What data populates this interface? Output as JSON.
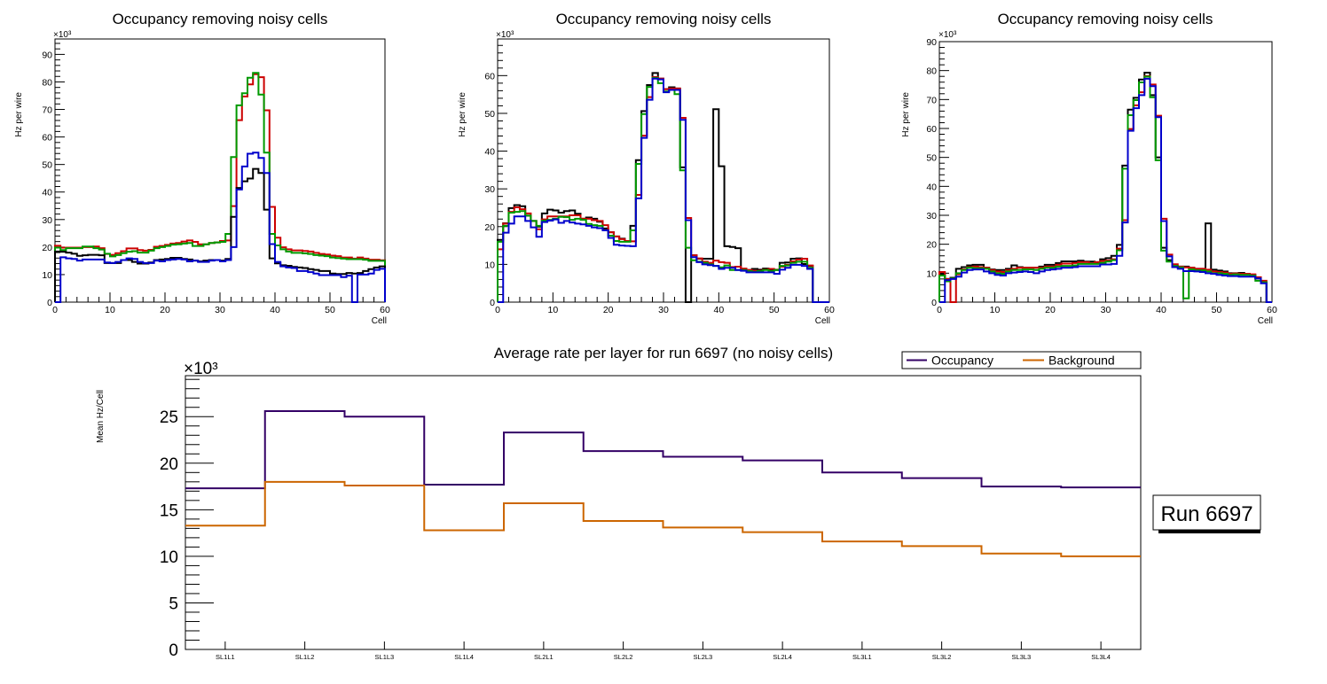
{
  "colors": {
    "black": "#000000",
    "red": "#cc0000",
    "green": "#009900",
    "blue": "#0000cc",
    "occupancy": "#330066",
    "background": "#cc6600"
  },
  "chart_data": [
    {
      "type": "step-histogram",
      "title": "Occupancy removing noisy cells",
      "xlabel": "Cell",
      "ylabel": "Hz per wire",
      "y_multiplier": "×10³",
      "xlim": [
        0,
        60
      ],
      "ylim": [
        0,
        95.6
      ],
      "xticks": [
        0,
        10,
        20,
        30,
        40,
        50,
        60
      ],
      "yticks": [
        0,
        10,
        20,
        30,
        40,
        50,
        60,
        70,
        80,
        90
      ],
      "series": [
        {
          "name": "red",
          "color": "#cc0000",
          "values": [
            20.5,
            19.8,
            19.8,
            19.8,
            19.8,
            20,
            20,
            20.2,
            19.6,
            17.5,
            17.2,
            17.8,
            18.5,
            19.5,
            19.5,
            18.9,
            18.7,
            19,
            20.1,
            20.4,
            20.8,
            21.3,
            21.5,
            22,
            22.4,
            21.9,
            21,
            21,
            21.5,
            21.7,
            22.2,
            22.4,
            34.9,
            66.1,
            74.7,
            79.1,
            82.8,
            81.7,
            69.7,
            34.6,
            23.4,
            19.9,
            19.2,
            18.8,
            18.8,
            18.6,
            18.4,
            17.9,
            17.5,
            17.3,
            16.9,
            16.7,
            16.2,
            16.2,
            15.8,
            16.2,
            15.8,
            15.4,
            15.4,
            15.2
          ]
        },
        {
          "name": "green",
          "color": "#009900",
          "values": [
            19.8,
            18.9,
            19.6,
            19.6,
            19.6,
            20.2,
            20.2,
            19.6,
            19.1,
            17.6,
            16.6,
            17.1,
            17.8,
            18.3,
            18.5,
            18,
            18,
            18.7,
            19.6,
            20,
            20.4,
            20.9,
            21,
            21.3,
            21.5,
            20.4,
            20.4,
            21,
            21.5,
            21.7,
            21.9,
            24.8,
            52.7,
            71.5,
            75.9,
            81.5,
            83.3,
            75.4,
            54.3,
            24.8,
            20.6,
            19.2,
            18.4,
            17.9,
            17.9,
            17.7,
            17.5,
            17.1,
            16.9,
            16.7,
            16.2,
            16,
            15.8,
            15.6,
            15.6,
            15.6,
            15.4,
            15,
            15,
            15
          ]
        },
        {
          "name": "black",
          "color": "#000000",
          "values": [
            18.4,
            18.3,
            18,
            17.6,
            16.8,
            17,
            17.2,
            17.2,
            17,
            14.2,
            14.2,
            14.2,
            15.3,
            15.3,
            14.6,
            14,
            14,
            14.4,
            15.3,
            15.5,
            15.7,
            16.1,
            16.1,
            15.7,
            15.5,
            15.1,
            14.8,
            15.1,
            15.3,
            15.3,
            15.1,
            15.7,
            31,
            41.5,
            43.9,
            44.9,
            48.4,
            46.9,
            33.6,
            15.9,
            14.1,
            13.4,
            13.2,
            12.8,
            12.6,
            12.4,
            12,
            11.7,
            11.3,
            11.3,
            10.4,
            10.2,
            10.2,
            10.6,
            10.4,
            10.6,
            11.3,
            12,
            12.6,
            13
          ]
        },
        {
          "name": "blue",
          "color": "#0000cc",
          "values": [
            0,
            16.3,
            15.9,
            15.7,
            15.1,
            15.5,
            15.5,
            15.5,
            15.5,
            14.4,
            14.2,
            14.6,
            15.3,
            15.9,
            15.7,
            14.6,
            14.2,
            14.2,
            15.1,
            14.8,
            15.3,
            15.5,
            15.7,
            15.5,
            14.8,
            15.1,
            14.6,
            14.6,
            15.1,
            15.3,
            14.8,
            15.3,
            20,
            40.9,
            49.3,
            53.9,
            54.3,
            52.4,
            46.9,
            21.1,
            14.6,
            13,
            12.6,
            12.4,
            11.3,
            11.3,
            10.9,
            10.4,
            9.8,
            9.8,
            9.8,
            9.8,
            9.1,
            9.6,
            0,
            10,
            10,
            10.4,
            11.7,
            12.1
          ]
        }
      ]
    },
    {
      "type": "step-histogram",
      "title": "Occupancy removing noisy cells",
      "xlabel": "Cell",
      "ylabel": "Hz per wire",
      "y_multiplier": "×10³",
      "xlim": [
        0,
        60
      ],
      "ylim": [
        0,
        69.7
      ],
      "xticks": [
        0,
        10,
        20,
        30,
        40,
        50,
        60
      ],
      "yticks": [
        0,
        10,
        20,
        30,
        40,
        50,
        60
      ],
      "series": [
        {
          "name": "black",
          "color": "#000000",
          "values": [
            16.5,
            20.9,
            24.9,
            25.7,
            25.4,
            22.9,
            21.5,
            20,
            23.5,
            24.5,
            24.3,
            23.7,
            24.1,
            24.3,
            23.4,
            22.1,
            22.4,
            22.1,
            21.3,
            19.5,
            18.5,
            17.4,
            16.8,
            16.2,
            20.2,
            37.6,
            50.6,
            57.5,
            60.7,
            59.2,
            56.4,
            56.9,
            56.6,
            35.7,
            0,
            12.4,
            11.5,
            11.5,
            11.5,
            51.1,
            36,
            14.8,
            14.6,
            14.3,
            8.8,
            8.5,
            8.8,
            8.6,
            8.9,
            8.6,
            8.5,
            10.4,
            10.5,
            11.5,
            11.6,
            10.1,
            9.6,
            0,
            0,
            0
          ]
        },
        {
          "name": "red",
          "color": "#cc0000",
          "values": [
            14,
            20.8,
            23.9,
            25.1,
            24.6,
            23.5,
            21.5,
            19.3,
            21.9,
            22.7,
            22.7,
            22.7,
            22.7,
            23,
            23,
            22.1,
            22.1,
            21.7,
            21.5,
            20.4,
            18.5,
            17.4,
            16.7,
            16.2,
            16.1,
            28.4,
            44.1,
            54.3,
            59.6,
            59.2,
            56.4,
            56.6,
            56.6,
            48.8,
            22.3,
            12.4,
            11.6,
            10.7,
            10.4,
            11,
            10.6,
            10.4,
            9.3,
            9.4,
            8.9,
            8.5,
            8.3,
            8.3,
            8.6,
            8.8,
            8.6,
            9.4,
            9.9,
            10.8,
            11.3,
            11.5,
            9.7,
            0,
            0,
            0
          ]
        },
        {
          "name": "green",
          "color": "#009900",
          "values": [
            16,
            20.2,
            23.7,
            23.9,
            24.1,
            22.9,
            21.5,
            20.2,
            21.6,
            21.8,
            22.1,
            22.6,
            22.5,
            21.8,
            22.1,
            21.8,
            20.7,
            20.4,
            20.2,
            19,
            17.6,
            16.2,
            16,
            16,
            19,
            36.6,
            49.8,
            57,
            59.4,
            58,
            55.8,
            56.2,
            55.1,
            34.9,
            14.4,
            11.1,
            10.7,
            10.4,
            10,
            9.6,
            9.2,
            9.7,
            8.5,
            8.5,
            8.5,
            8.2,
            8,
            8.2,
            8.5,
            8.2,
            8.5,
            9.6,
            9.7,
            10.4,
            10.7,
            10.7,
            9.1,
            0,
            0,
            0
          ]
        },
        {
          "name": "blue",
          "color": "#0000cc",
          "values": [
            0,
            18.4,
            20.8,
            22.7,
            22.7,
            21.5,
            19.8,
            17.3,
            21.2,
            21.6,
            21.9,
            21,
            21.5,
            21.1,
            20.8,
            20.6,
            20.2,
            19.8,
            19.6,
            19,
            17,
            15.2,
            15,
            14.9,
            14.8,
            27.5,
            43.5,
            53.6,
            59.2,
            59,
            55.6,
            56.2,
            56.2,
            48.3,
            21.7,
            11.9,
            10.6,
            10,
            9.8,
            9.6,
            8.8,
            9.1,
            9.1,
            8.5,
            8.3,
            7.9,
            7.9,
            7.9,
            7.9,
            7.9,
            7.5,
            8.6,
            9.1,
            9.9,
            9.9,
            9.6,
            8.8,
            0,
            0,
            0
          ]
        }
      ]
    },
    {
      "type": "step-histogram",
      "title": "Occupancy removing noisy cells",
      "xlabel": "Cell",
      "ylabel": "Hz per wire",
      "y_multiplier": "×10³",
      "xlim": [
        0,
        60
      ],
      "ylim": [
        0,
        90
      ],
      "xticks": [
        0,
        10,
        20,
        30,
        40,
        50,
        60
      ],
      "yticks": [
        0,
        10,
        20,
        30,
        40,
        50,
        60,
        70,
        80,
        90
      ],
      "series": [
        {
          "name": "black",
          "color": "#000000",
          "values": [
            9.6,
            8,
            8.4,
            11.5,
            12.1,
            12.7,
            12.9,
            12.9,
            11.9,
            11.3,
            11.1,
            11.1,
            11.5,
            12.7,
            12.1,
            11.9,
            11.9,
            11.9,
            12.3,
            12.9,
            12.9,
            13.5,
            14.1,
            14.1,
            14.1,
            14.3,
            14,
            14,
            13.8,
            14.8,
            15.2,
            16,
            19.8,
            47.2,
            66.5,
            70.6,
            76.9,
            79.3,
            71.5,
            50,
            18.8,
            14.5,
            12.3,
            12.3,
            12.3,
            11.9,
            11.5,
            11.5,
            27.2,
            11.2,
            10.9,
            10.6,
            10,
            10,
            10.1,
            9.8,
            9.4,
            8.2,
            6.9,
            0
          ]
        },
        {
          "name": "red",
          "color": "#cc0000",
          "values": [
            10.4,
            8,
            0,
            9.6,
            11.3,
            12.1,
            12.3,
            12.1,
            11.9,
            11.1,
            10.6,
            10.4,
            11.1,
            11.5,
            11.9,
            11.9,
            11.9,
            11.9,
            11.9,
            12.3,
            12.3,
            12.9,
            13.3,
            13.3,
            13.5,
            13.8,
            13.8,
            13.4,
            13.8,
            14.2,
            14.4,
            14.8,
            18.5,
            28.3,
            59.8,
            68,
            72.5,
            78.1,
            75.2,
            64.4,
            28.8,
            16.4,
            13.1,
            12.3,
            12,
            11.9,
            11.5,
            11.5,
            11.2,
            10.6,
            10.4,
            10.2,
            9.8,
            9.9,
            9.8,
            9.8,
            9.6,
            8.6,
            7.4,
            0
          ]
        },
        {
          "name": "green",
          "color": "#009900",
          "values": [
            9.2,
            7.2,
            8.2,
            10,
            11.1,
            11.9,
            11.7,
            11.7,
            11.5,
            10.6,
            10,
            9.8,
            10.6,
            11.1,
            11.1,
            11.3,
            11.3,
            11.1,
            11.5,
            11.9,
            11.9,
            12.3,
            12.5,
            12.5,
            12.7,
            13.2,
            13.2,
            13.2,
            13.2,
            13.6,
            14,
            14.5,
            17.9,
            46.1,
            64.6,
            69.8,
            75.9,
            77.9,
            70.8,
            49,
            17.8,
            14,
            12.5,
            12,
            1.3,
            11.3,
            11,
            11,
            10.6,
            10,
            10,
            9.8,
            9.4,
            9.6,
            9.4,
            9.4,
            9.2,
            7.4,
            6.9,
            0
          ]
        },
        {
          "name": "blue",
          "color": "#0000cc",
          "values": [
            0,
            7.6,
            8,
            8.8,
            10.2,
            11.1,
            11.3,
            11.3,
            10.6,
            10,
            9.4,
            9.2,
            10,
            10.2,
            10.4,
            10.6,
            10.4,
            10,
            10.6,
            11.1,
            11.3,
            11.5,
            11.9,
            11.9,
            12.1,
            12.4,
            12.4,
            12.4,
            12.4,
            13,
            13,
            13.2,
            16,
            27.5,
            59.2,
            67,
            71.5,
            77.2,
            74.6,
            63.9,
            28,
            15.8,
            12.1,
            11.5,
            10.7,
            10.7,
            10.6,
            10.4,
            10,
            9.8,
            9.4,
            9.2,
            9,
            9,
            8.8,
            8.8,
            8.8,
            8.2,
            6.5,
            0
          ]
        }
      ]
    },
    {
      "type": "step-histogram",
      "title": "Average rate per layer for run 6697 (no noisy cells)",
      "xlabel": "",
      "ylabel": "Mean Hz/Cell",
      "y_multiplier": "×10³",
      "ylim": [
        0,
        29.4
      ],
      "yticks": [
        0,
        5,
        10,
        15,
        20,
        25
      ],
      "categories": [
        "SL1L1",
        "SL1L2",
        "SL1L3",
        "SL1L4",
        "SL2L1",
        "SL2L2",
        "SL2L3",
        "SL2L4",
        "SL3L1",
        "SL3L2",
        "SL3L3",
        "SL3L4"
      ],
      "legend": {
        "position": "top-right",
        "entries": [
          "Occupancy",
          "Background"
        ]
      },
      "series": [
        {
          "name": "Occupancy",
          "color": "#330066",
          "values": [
            17.3,
            25.6,
            25.0,
            17.7,
            23.3,
            21.3,
            20.7,
            20.3,
            19.0,
            18.4,
            17.5,
            17.4
          ]
        },
        {
          "name": "Background",
          "color": "#cc6600",
          "values": [
            13.3,
            18.0,
            17.6,
            12.8,
            15.7,
            13.8,
            13.1,
            12.6,
            11.6,
            11.1,
            10.3,
            10.0
          ]
        }
      ]
    }
  ],
  "annotation": {
    "run_label": "Run 6697"
  }
}
